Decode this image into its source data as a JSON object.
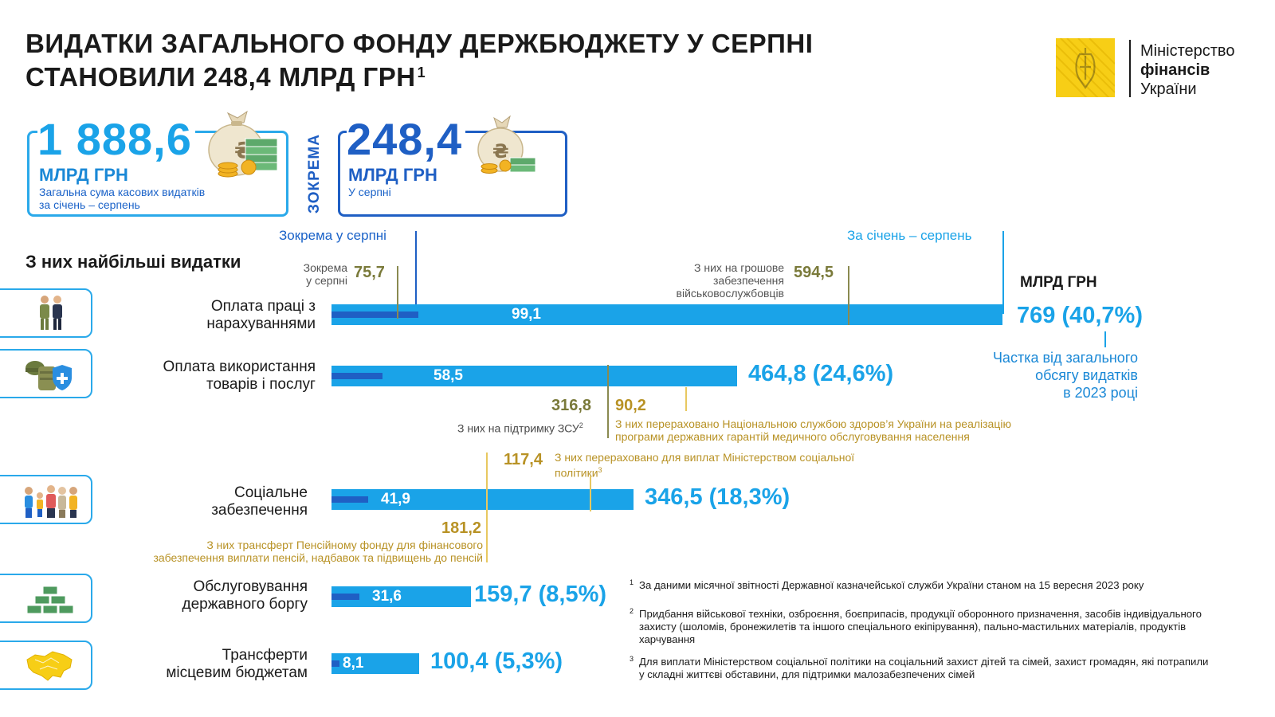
{
  "title": {
    "line1": "ВИДАТКИ ЗАГАЛЬНОГО ФОНДУ ДЕРЖБЮДЖЕТУ У СЕРПНІ",
    "line2": "СТАНОВИЛИ 248,4 МЛРД ГРН",
    "footnote_mark": "1"
  },
  "logo": {
    "line1": "Міністерство",
    "line2": "фінансів",
    "line3": "України",
    "emblem_color": "#f7ce16"
  },
  "summary": {
    "total": {
      "value": "1 888,6",
      "unit": "МЛРД ГРН",
      "desc_line1": "Загальна сума касових видатків",
      "desc_line2": "за січень – серпень"
    },
    "separator": "ЗОКРЕМА",
    "month": {
      "value": "248,4",
      "unit": "МЛРД ГРН",
      "desc": "У серпні"
    }
  },
  "section_title": "З них найбільші видатки",
  "legend": {
    "month_label": "Зокрема у серпні",
    "period_label": "За січень – серпень",
    "unit": "МЛРД ГРН"
  },
  "share_note": {
    "line1": "Частка від загального",
    "line2": "обсягу видатків",
    "line3": "в 2023 році"
  },
  "annotations": {
    "salary_month_label_1": "Зокрема",
    "salary_month_label_2": "у серпні",
    "salary_month_value": "75,7",
    "salary_military_label_1": "З них на грошове",
    "salary_military_label_2": "забезпечення",
    "salary_military_label_3": "військовослужбовців",
    "salary_military_value": "594,5",
    "goods_zsu_value": "316,8",
    "goods_zsu_label": "З них на підтримку ЗСУ",
    "goods_zsu_mark": "2",
    "goods_health_value": "90,2",
    "goods_health_line1": "З них перераховано Національною службою здоров’я України на реалізацію",
    "goods_health_line2": "програми державних гарантій медичного обслуговування населення",
    "social_min_value": "117,4",
    "social_min_line1": "З них перераховано для виплат Міністерством соціальної",
    "social_min_line2": "політики",
    "social_min_mark": "3",
    "social_pension_value": "181,2",
    "social_pension_line1": "З них трансферт Пенсійному фонду для фінансового",
    "social_pension_line2": "забезпечення виплати пенсій, надбавок та підвищень до пенсій"
  },
  "chart_data": {
    "type": "bar",
    "orientation": "horizontal",
    "unit": "МЛРД ГРН",
    "categories": [
      "Оплата праці з нарахуваннями",
      "Оплата використання товарів і послуг",
      "Соціальне забезпечення",
      "Обслуговування державного боргу",
      "Трансферти місцевим бюджетам"
    ],
    "series": [
      {
        "name": "За січень – серпень",
        "values": [
          769,
          464.8,
          346.5,
          159.7,
          100.4
        ],
        "labels": [
          "769 (40,7%)",
          "464,8 (24,6%)",
          "346,5 (18,3%)",
          "159,7 (8,5%)",
          "100,4 (5,3%)"
        ],
        "share_percent": [
          40.7,
          24.6,
          18.3,
          8.5,
          5.3
        ]
      },
      {
        "name": "Зокрема у серпні",
        "values": [
          99.1,
          58.5,
          41.9,
          31.6,
          8.1
        ],
        "labels": [
          "99,1",
          "58,5",
          "41,9",
          "31,6",
          "8,1"
        ]
      }
    ],
    "sub_items": [
      {
        "category": "Оплата праці з нарахуваннями",
        "value": 594.5
      },
      {
        "category": "Оплата праці з нарахуваннями",
        "value": 75.7
      },
      {
        "category": "Оплата використання товарів і послуг",
        "value": 316.8
      },
      {
        "category": "Оплата використання товарів і послуг",
        "value": 90.2
      },
      {
        "category": "Соціальне забезпечення",
        "value": 181.2
      },
      {
        "category": "Соціальне забезпечення",
        "value": 117.4
      }
    ],
    "colors": {
      "total": "#1aa3e8",
      "month": "#1f5fc4",
      "olive": "#7a7a3a",
      "gold": "#b89225"
    }
  },
  "categories": [
    {
      "line1": "Оплата праці з",
      "line2": "нарахуваннями",
      "icon": "soldier-and-worker-icon"
    },
    {
      "line1": "Оплата використання",
      "line2": "товарів і послуг",
      "icon": "military-gear-icon"
    },
    {
      "line1": "Соціальне",
      "line2": "забезпечення",
      "icon": "family-icon"
    },
    {
      "line1": "Обслуговування",
      "line2": "державного боргу",
      "icon": "money-stack-icon"
    },
    {
      "line1": "Трансферти",
      "line2": "місцевим бюджетам",
      "icon": "ukraine-map-icon"
    }
  ],
  "footnotes": [
    {
      "mark": "1",
      "text": "За даними місячної звітності Державної казначейської служби України станом на 15 вересня 2023 року"
    },
    {
      "mark": "2",
      "text": "Придбання військової техніки, озброєння, боєприпасів, продукції оборонного призначення, засобів індивідуального захисту (шоломів, бронежилетів та іншого спеціального екіпірування), пально-мастильних матеріалів, продуктів харчування"
    },
    {
      "mark": "3",
      "text": "Для виплати Міністерством соціальної політики на соціальний захист дітей та сімей, захист громадян, які потрапили у складні життєві обставини, для підтримки малозабезпечених сімей"
    }
  ]
}
